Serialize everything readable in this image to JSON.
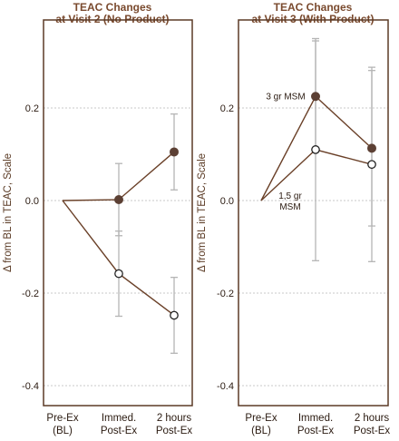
{
  "chart_data": [
    {
      "type": "line",
      "title": [
        "TEAC Changes",
        "at Visit 2 (No Product)"
      ],
      "ylabel": "Δ from BL in TEAC, Scale",
      "categories": [
        [
          "Pre-Ex",
          "(BL)"
        ],
        [
          "Immed.",
          "Post-Ex"
        ],
        [
          "2 hours",
          "Post-Ex"
        ]
      ],
      "yticks": [
        "0.2",
        "0.0",
        "-0.2",
        "-0.4"
      ],
      "ylim": [
        -0.42,
        0.4
      ],
      "grid": true,
      "series": [
        {
          "values": [
            0.0,
            0.002,
            0.105
          ],
          "err": [
            null,
            0.078,
            0.082
          ],
          "marker": "filled"
        },
        {
          "values": [
            0.0,
            -0.158,
            -0.248
          ],
          "err": [
            null,
            0.092,
            0.082
          ],
          "marker": "open"
        }
      ],
      "annotations": []
    },
    {
      "type": "line",
      "title": [
        "TEAC Changes",
        "at Visit 3 (With Product)"
      ],
      "ylabel": "Δ from BL in TEAC, Scale",
      "categories": [
        [
          "Pre-Ex",
          "(BL)"
        ],
        [
          "Immed.",
          "Post-Ex"
        ],
        [
          "2 hours",
          "Post-Ex"
        ]
      ],
      "yticks": [
        "0.2",
        "0.0",
        "-0.2",
        "-0.4"
      ],
      "ylim": [
        -0.42,
        0.4
      ],
      "grid": true,
      "series": [
        {
          "name": "3 gr MSM",
          "values": [
            0.0,
            0.225,
            0.113
          ],
          "err": [
            null,
            0.12,
            0.168
          ],
          "marker": "filled"
        },
        {
          "name": "1,5 gr MSM",
          "values": [
            0.0,
            0.11,
            0.078
          ],
          "err": [
            null,
            0.24,
            0.21
          ],
          "marker": "open"
        }
      ],
      "annotations": [
        {
          "lines": [
            "3 gr MSM"
          ],
          "series": 0,
          "point": 1,
          "position": "left"
        },
        {
          "lines": [
            "1,5 gr",
            "MSM"
          ],
          "series": 1,
          "point": 1,
          "position": "below-left"
        }
      ]
    }
  ],
  "colors": {
    "frame": "#5b3a26",
    "line": "#6a4028",
    "filled_marker": "#5c4034",
    "open_marker_fill": "#ffffff",
    "error_bar": "#b5b5b5",
    "grid": "#c8c8c8",
    "title": "#7a4a2e"
  }
}
